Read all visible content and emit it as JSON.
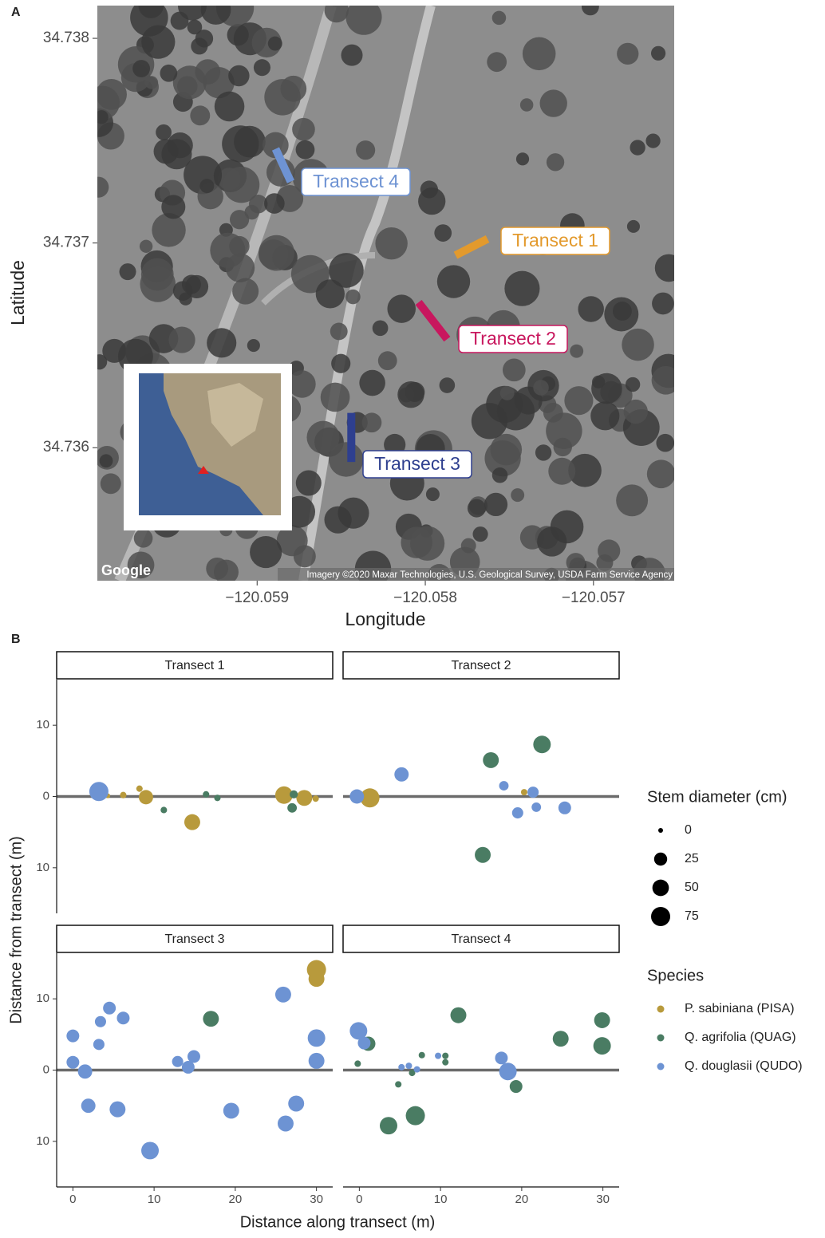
{
  "chart_data": [
    {
      "type": "map",
      "panel": "A",
      "xlabel": "Longitude",
      "ylabel": "Latitude",
      "xlim": [
        -120.05995,
        -120.05652
      ],
      "ylim": [
        34.73535,
        34.73816
      ],
      "xticks": [
        {
          "value": -120.059,
          "label": "−120.059"
        },
        {
          "value": -120.058,
          "label": "−120.058"
        },
        {
          "value": -120.057,
          "label": "−120.057"
        }
      ],
      "yticks": [
        34.736,
        34.737,
        34.738
      ],
      "series": [
        {
          "name": "Transect 1",
          "color": "#e39a2d",
          "x": [
            -120.05782,
            -120.05763
          ],
          "y": [
            34.73694,
            34.73702
          ]
        },
        {
          "name": "Transect 2",
          "color": "#c8175e",
          "x": [
            -120.05804,
            -120.05787
          ],
          "y": [
            34.73671,
            34.73653
          ]
        },
        {
          "name": "Transect 3",
          "color": "#2e3f8f",
          "x": [
            -120.05844,
            -120.05844
          ],
          "y": [
            34.73617,
            34.73593
          ]
        },
        {
          "name": "Transect 4",
          "color": "#6e93d3",
          "x": [
            -120.05889,
            -120.0588
          ],
          "y": [
            34.73746,
            34.7373
          ]
        }
      ],
      "logo": "Google",
      "credit": "Imagery ©2020 Maxar Technologies, U.S. Geological Survey, USDA Farm Service Agency"
    },
    {
      "type": "scatter",
      "panel": "B",
      "xlabel": "Distance along transect (m)",
      "ylabel": "Distance from transect (m)",
      "xlim": [
        -2,
        32
      ],
      "ylim": [
        -16.4,
        16.4
      ],
      "xticks": [
        0,
        10,
        20,
        30
      ],
      "yticks": [
        10,
        0,
        {
          "value": -10,
          "label": "10"
        }
      ],
      "hline": 0,
      "size_legend": {
        "title": "Stem diameter (cm)",
        "values": [
          0,
          25,
          50,
          75
        ]
      },
      "species_title": "Species",
      "species": [
        {
          "name": "P. sabiniana (PISA)",
          "color": "#b89a3c"
        },
        {
          "name": "Q. agrifolia (QUAG)",
          "color": "#4a7c63"
        },
        {
          "name": "Q. douglasii (QUDO)",
          "color": "#6d93d3"
        }
      ],
      "facets": [
        {
          "title": "Transect 1",
          "series": [
            {
              "x": [
                4.3,
                6.2,
                8.2,
                9.0,
                14.7,
                26.0,
                28.5,
                29.9
              ],
              "y": [
                0.1,
                0.2,
                1.1,
                -0.1,
                -3.6,
                0.2,
                -0.2,
                -0.3
              ],
              "size": [
                0,
                1,
                1,
                33,
                45,
                59,
                45,
                1
              ]
            },
            {
              "x": [
                11.2,
                16.4,
                17.8,
                27.0,
                27.2
              ],
              "y": [
                -1.9,
                0.3,
                -0.2,
                -1.6,
                0.3
              ],
              "size": [
                1,
                1,
                1,
                8,
                4
              ]
            },
            {
              "x": [
                3.2
              ],
              "y": [
                0.7
              ],
              "size": [
                75
              ]
            }
          ]
        },
        {
          "title": "Transect 2",
          "series": [
            {
              "x": [
                1.3,
                20.3
              ],
              "y": [
                -0.2,
                0.6
              ],
              "size": [
                75,
                1
              ]
            },
            {
              "x": [
                16.2,
                15.2,
                22.5
              ],
              "y": [
                5.1,
                -8.2,
                7.3
              ],
              "size": [
                45,
                45,
                59
              ]
            },
            {
              "x": [
                -0.3,
                5.2,
                17.8,
                19.5,
                21.4,
                21.8,
                25.3
              ],
              "y": [
                0,
                3.1,
                1.5,
                -2.3,
                0.6,
                -1.5,
                -1.6
              ],
              "size": [
                33,
                33,
                8,
                15,
                15,
                8,
                23
              ]
            }
          ]
        },
        {
          "title": "Transect 3",
          "series": [
            {
              "x": [
                30,
                30
              ],
              "y": [
                14.1,
                12.8
              ],
              "size": [
                75,
                45
              ]
            },
            {
              "x": [
                17.0
              ],
              "y": [
                7.2
              ],
              "size": [
                45
              ]
            },
            {
              "x": [
                0,
                0,
                1.5,
                1.9,
                3.4,
                3.2,
                4.5,
                6.2,
                5.5,
                9.5,
                12.9,
                14.2,
                14.9,
                19.5,
                25.9,
                26.2,
                27.5,
                30,
                30
              ],
              "y": [
                4.8,
                1.1,
                -0.2,
                -5.0,
                6.8,
                3.6,
                8.7,
                7.3,
                -5.5,
                -11.3,
                1.2,
                0.4,
                1.9,
                -5.7,
                10.6,
                -7.5,
                -4.7,
                4.5,
                1.3
              ],
              "size": [
                23,
                23,
                33,
                33,
                15,
                15,
                23,
                23,
                45,
                59,
                15,
                23,
                23,
                45,
                45,
                45,
                45,
                59,
                45
              ]
            }
          ]
        },
        {
          "title": "Transect 4",
          "series": [
            {
              "x": [],
              "y": [],
              "size": []
            },
            {
              "x": [
                -0.2,
                1.1,
                3.6,
                4.8,
                6.5,
                6.9,
                7.7,
                10.6,
                10.6,
                12.2,
                19.3,
                24.8,
                29.9,
                29.9
              ],
              "y": [
                0.9,
                3.7,
                -7.8,
                -2.0,
                -0.4,
                -6.4,
                2.1,
                2.0,
                1.1,
                7.7,
                -2.3,
                4.4,
                7.0,
                3.4
              ],
              "size": [
                1,
                33,
                59,
                1,
                1,
                75,
                1,
                1,
                1,
                45,
                23,
                45,
                45,
                59
              ]
            },
            {
              "x": [
                -0.1,
                0.6,
                5.2,
                6.1,
                7.1,
                9.7,
                17.5,
                18.3
              ],
              "y": [
                5.5,
                3.8,
                0.4,
                0.6,
                0.1,
                2.0,
                1.7,
                -0.2
              ],
              "size": [
                59,
                23,
                1,
                1,
                1,
                1,
                23,
                59
              ]
            }
          ]
        }
      ]
    }
  ]
}
